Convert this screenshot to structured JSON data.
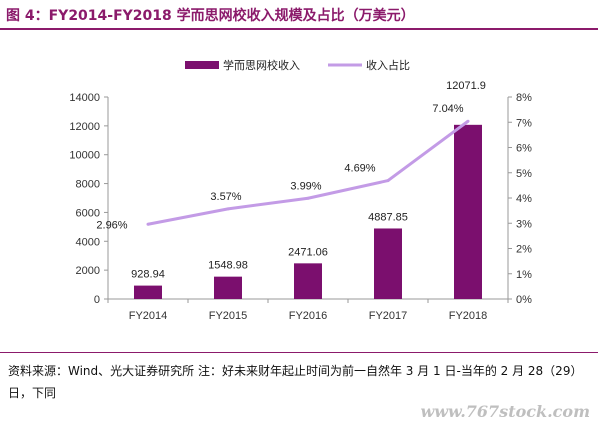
{
  "header": {
    "title": "图 4：FY2014-FY2018 学而思网校收入规模及占比（万美元）"
  },
  "chart_data": {
    "type": "bar",
    "categories": [
      "FY2014",
      "FY2015",
      "FY2016",
      "FY2017",
      "FY2018"
    ],
    "series": [
      {
        "name": "学而思网校收入",
        "kind": "bar",
        "axis": "left",
        "color": "#7b0f6e",
        "values": [
          928.94,
          1548.98,
          2471.06,
          4887.85,
          12071.9
        ],
        "labels": [
          "928.94",
          "1548.98",
          "2471.06",
          "4887.85",
          "12071.9"
        ]
      },
      {
        "name": "收入占比",
        "kind": "line",
        "axis": "right",
        "color": "#c39be6",
        "values": [
          2.96,
          3.57,
          3.99,
          4.69,
          7.04
        ],
        "labels": [
          "2.96%",
          "3.57%",
          "3.99%",
          "4.69%",
          "7.04%"
        ]
      }
    ],
    "left_axis": {
      "ylim": [
        0,
        14000
      ],
      "ticks": [
        0,
        2000,
        4000,
        6000,
        8000,
        10000,
        12000,
        14000
      ],
      "tick_labels": [
        "0",
        "2000",
        "4000",
        "6000",
        "8000",
        "10000",
        "12000",
        "14000"
      ]
    },
    "right_axis": {
      "ylim": [
        0,
        8
      ],
      "ticks": [
        0,
        1,
        2,
        3,
        4,
        5,
        6,
        7,
        8
      ],
      "tick_labels": [
        "0%",
        "1%",
        "2%",
        "3%",
        "4%",
        "5%",
        "6%",
        "7%",
        "8%"
      ]
    },
    "legend_position": "top-center",
    "grid": false
  },
  "footer": {
    "source": "资料来源：Wind、光大证券研究所 注：好未来财年起止时间为前一自然年 3 月 1 日-当年的 2 月 28（29）日，下同",
    "watermark": "www.767stock.com"
  }
}
